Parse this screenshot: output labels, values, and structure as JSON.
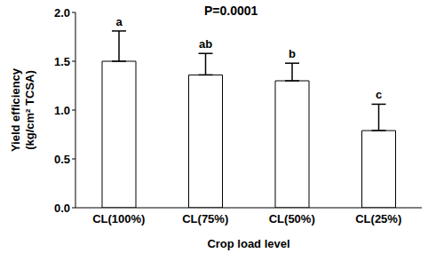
{
  "chart_data": {
    "type": "bar",
    "annotation": "P=0.0001",
    "xlabel": "Crop load level",
    "ylabel": "Yield efficiency (kg/cm² TCSA)",
    "categories": [
      "CL(100%)",
      "CL(75%)",
      "CL(50%)",
      "CL(25%)"
    ],
    "values": [
      1.5,
      1.36,
      1.3,
      0.79
    ],
    "error": [
      0.31,
      0.22,
      0.18,
      0.27
    ],
    "significance_letters": [
      "a",
      "ab",
      "b",
      "c"
    ],
    "color": "#ffffff",
    "ylim": [
      0,
      2
    ],
    "yticks": [
      {
        "value": 0,
        "label": "0.0"
      },
      {
        "value": 0.5,
        "label": "0.5"
      },
      {
        "value": 1,
        "label": "1.0"
      },
      {
        "value": 1.5,
        "label": "1.5"
      },
      {
        "value": 2,
        "label": "2.0"
      }
    ],
    "grid": false
  }
}
